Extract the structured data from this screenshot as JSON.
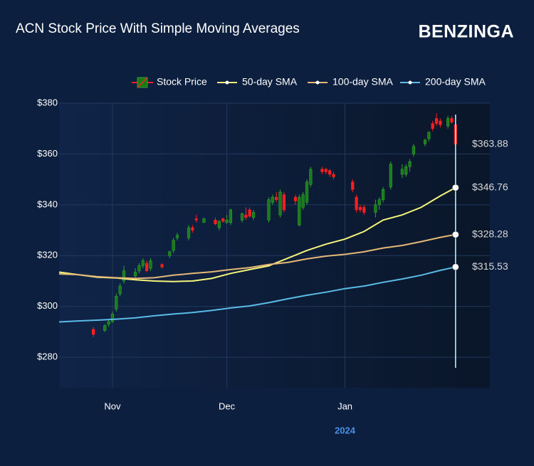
{
  "chart_data": {
    "type": "candlestick",
    "title": "ACN Stock Price With Simple Moving Averages",
    "brand": "BENZINGA",
    "x_axis_label": "2024",
    "ylim": [
      268,
      380
    ],
    "yticks": [
      {
        "value": 280,
        "label": "$280"
      },
      {
        "value": 300,
        "label": "$300"
      },
      {
        "value": 320,
        "label": "$320"
      },
      {
        "value": 340,
        "label": "$340"
      },
      {
        "value": 360,
        "label": "$360"
      },
      {
        "value": 380,
        "label": "$380"
      }
    ],
    "xlim": [
      -14,
      99
    ],
    "xticks": [
      {
        "value": 0,
        "label": "Nov"
      },
      {
        "value": 30,
        "label": "Dec"
      },
      {
        "value": 61,
        "label": "Jan"
      }
    ],
    "grid": true,
    "legend": "top",
    "series": [
      {
        "name": "Stock Price",
        "up_color": "#1a7a1a",
        "down_color": "#ff1f1f",
        "x": [
          -5,
          -2,
          -1,
          0,
          1,
          2,
          3,
          6,
          7,
          8,
          9,
          10,
          13,
          15,
          16,
          17,
          20,
          21,
          22,
          24,
          27,
          28,
          29,
          30,
          31,
          34,
          35,
          36,
          37,
          41,
          42,
          43,
          44,
          45,
          48,
          49,
          50,
          51,
          52,
          55,
          56,
          57,
          58,
          63,
          64,
          65,
          66,
          69,
          70,
          71,
          73,
          76,
          77,
          78,
          79,
          82,
          83,
          84,
          85,
          86,
          88,
          89,
          90
        ],
        "open": [
          291,
          290.5,
          293,
          294,
          299,
          305,
          310,
          312,
          314,
          316,
          317,
          315,
          316.5,
          320,
          322,
          327,
          327,
          331,
          334.5,
          333,
          334,
          331,
          334.5,
          333,
          333,
          334,
          336,
          338,
          335,
          334,
          341,
          343,
          336,
          344,
          343,
          332,
          339,
          341,
          348,
          354,
          354,
          353.5,
          352,
          349,
          343,
          339,
          339,
          337,
          340,
          342,
          347,
          352,
          352,
          355,
          360,
          364,
          366,
          372,
          374,
          373,
          371,
          374,
          371.5
        ],
        "high": [
          292,
          293,
          295,
          298,
          305,
          309,
          316,
          315,
          317,
          319,
          318,
          319,
          317,
          322,
          327,
          329,
          332,
          332,
          336,
          335,
          335,
          334,
          335,
          336,
          338.5,
          337,
          339,
          339,
          338,
          343,
          344,
          345,
          346,
          345,
          344,
          344,
          345,
          350,
          355,
          355,
          354.5,
          354,
          353,
          350,
          344,
          340,
          340,
          342,
          343,
          347,
          357,
          356,
          356,
          358,
          364,
          366,
          369,
          373,
          376,
          374,
          375,
          375,
          372
        ],
        "low": [
          288,
          290,
          292,
          293.5,
          298,
          304,
          309,
          311,
          313,
          315,
          313.5,
          314,
          315,
          319,
          321,
          326,
          326,
          329,
          333,
          333,
          332,
          330,
          333,
          332.5,
          332,
          333,
          334,
          335,
          334,
          333,
          340,
          341,
          335,
          337,
          340,
          331.5,
          338,
          340,
          347,
          352,
          352,
          351,
          350,
          345,
          337,
          337,
          336,
          335,
          338,
          341,
          346,
          350.5,
          351,
          353,
          359,
          363,
          365,
          369,
          371,
          370.5,
          370,
          372,
          363.5
        ],
        "close": [
          289,
          292.5,
          294,
          297,
          304,
          308,
          314,
          313.5,
          316,
          318,
          314,
          318,
          315.5,
          321.5,
          326,
          328,
          331,
          330,
          334,
          334.5,
          332.5,
          333.5,
          333.5,
          334,
          338,
          336.5,
          335,
          335.5,
          337,
          342,
          343,
          342,
          345,
          338,
          341.5,
          343,
          344,
          349,
          354,
          353,
          353,
          352,
          351,
          346,
          338,
          338,
          337,
          340,
          342,
          346,
          356,
          354,
          355,
          357,
          363,
          365.5,
          368.5,
          370,
          372,
          371.5,
          374,
          372.5,
          363.88
        ]
      },
      {
        "name": "50-day SMA",
        "color": "#f5f57a",
        "x": [
          -14,
          -9,
          -4,
          1,
          6,
          11,
          16,
          21,
          26,
          31,
          36,
          41,
          46,
          51,
          56,
          61,
          66,
          71,
          76,
          81,
          86,
          90
        ],
        "values": [
          313.5,
          312.5,
          311.5,
          311.2,
          310.5,
          310,
          309.8,
          310,
          311,
          313,
          314.5,
          316,
          319,
          322,
          324.5,
          326.5,
          329.5,
          334,
          336,
          339,
          343.5,
          346.76
        ]
      },
      {
        "name": "100-day SMA",
        "color": "#e6b877",
        "x": [
          -14,
          -9,
          -4,
          1,
          6,
          11,
          16,
          21,
          26,
          31,
          36,
          41,
          46,
          51,
          56,
          61,
          66,
          71,
          76,
          81,
          86,
          90
        ],
        "values": [
          312.8,
          312.5,
          311.7,
          311.3,
          311,
          311.3,
          312.3,
          313,
          313.6,
          314.5,
          315.3,
          316.5,
          317.3,
          318.7,
          319.8,
          320.5,
          321.5,
          323,
          324,
          325.5,
          327.2,
          328.28
        ]
      },
      {
        "name": "200-day SMA",
        "color": "#5bbbe6",
        "x": [
          -14,
          -9,
          -4,
          1,
          6,
          11,
          16,
          21,
          26,
          31,
          36,
          41,
          46,
          51,
          56,
          61,
          66,
          71,
          76,
          81,
          86,
          90
        ],
        "values": [
          293.9,
          294.3,
          294.6,
          295,
          295.5,
          296.3,
          297,
          297.6,
          298.4,
          299.4,
          300.2,
          301.5,
          303,
          304.4,
          305.6,
          307,
          308,
          309.5,
          310.8,
          312.3,
          314.2,
          315.53
        ]
      }
    ],
    "annotations": [
      {
        "value": 363.88,
        "label": "$363.88"
      },
      {
        "value": 346.76,
        "label": "$346.76"
      },
      {
        "value": 328.28,
        "label": "$328.28"
      },
      {
        "value": 315.53,
        "label": "$315.53"
      }
    ]
  }
}
